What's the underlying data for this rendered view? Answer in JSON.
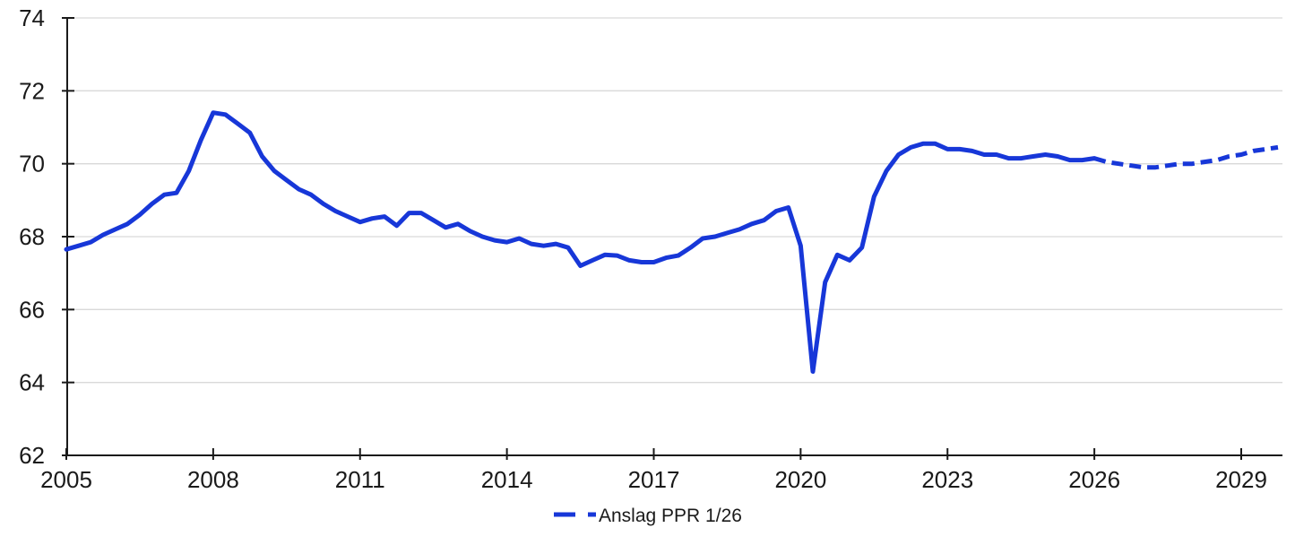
{
  "chart_data": {
    "type": "line",
    "title": "",
    "xlabel": "",
    "ylabel": "",
    "ylim": [
      62,
      74
    ],
    "xlim": [
      2005,
      2029.85
    ],
    "y_ticks": [
      62,
      64,
      66,
      68,
      70,
      72,
      74
    ],
    "x_ticks": [
      2005,
      2008,
      2011,
      2014,
      2017,
      2020,
      2023,
      2026,
      2029
    ],
    "grid": "horizontal-only",
    "legend_position": "bottom-center",
    "line_color": "#1737d8",
    "axis_color": "#1a1a1a",
    "grid_color": "#d9d9d9",
    "series": [
      {
        "label": "",
        "line_style": "solid",
        "frequency": "quarterly",
        "x_start": 2005.0,
        "x_step": 0.25,
        "values": [
          67.65,
          67.75,
          67.85,
          68.05,
          68.2,
          68.35,
          68.6,
          68.9,
          69.15,
          69.2,
          69.8,
          70.65,
          71.4,
          71.35,
          71.1,
          70.85,
          70.2,
          69.8,
          69.55,
          69.3,
          69.15,
          68.9,
          68.7,
          68.55,
          68.4,
          68.5,
          68.55,
          68.3,
          68.65,
          68.65,
          68.45,
          68.25,
          68.35,
          68.15,
          68.0,
          67.9,
          67.85,
          67.95,
          67.8,
          67.75,
          67.8,
          67.7,
          67.2,
          67.35,
          67.5,
          67.48,
          67.35,
          67.3,
          67.3,
          67.42,
          67.48,
          67.7,
          67.95,
          68.0,
          68.1,
          68.2,
          68.35,
          68.45,
          68.7,
          68.8,
          67.75,
          64.3,
          66.75,
          67.5,
          67.35,
          67.7,
          69.1,
          69.8,
          70.25,
          70.45,
          70.55,
          70.55,
          70.4,
          70.4,
          70.35,
          70.25,
          70.25,
          70.15,
          70.15,
          70.2,
          70.25,
          70.2,
          70.1,
          70.1,
          70.15
        ]
      },
      {
        "label": "Anslag PPR 1/26",
        "line_style": "dashed",
        "frequency": "quarterly",
        "x_start": 2026.0,
        "x_step": 0.25,
        "values": [
          70.15,
          70.05,
          70.0,
          69.95,
          69.9,
          69.9,
          69.95,
          70.0,
          70.0,
          70.05,
          70.1,
          70.2,
          70.25,
          70.35,
          70.4,
          70.45
        ]
      }
    ],
    "legend": [
      {
        "label": "Anslag PPR 1/26",
        "style": "dashed",
        "color": "#1737d8"
      }
    ]
  }
}
